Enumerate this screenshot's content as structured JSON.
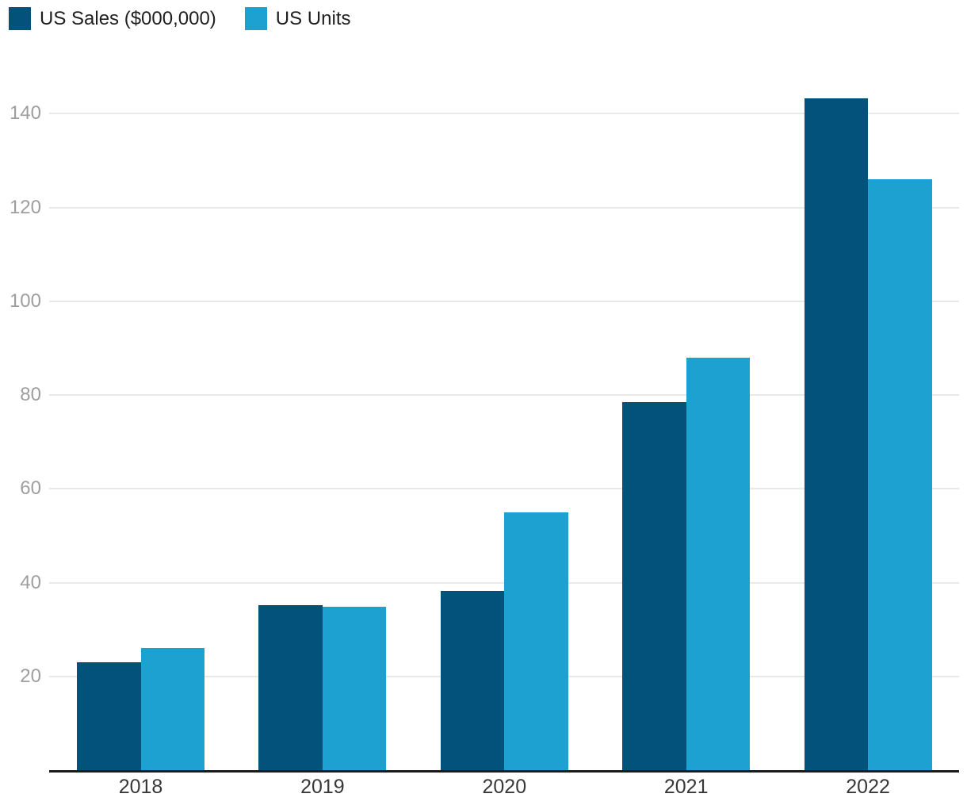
{
  "legend": {
    "items": [
      {
        "label": "US Sales ($000,000)"
      },
      {
        "label": "US Units"
      }
    ]
  },
  "chart_data": {
    "type": "bar",
    "title": "",
    "xlabel": "",
    "ylabel": "",
    "categories": [
      "2018",
      "2019",
      "2020",
      "2021",
      "2022"
    ],
    "series": [
      {
        "name": "US Sales ($000,000)",
        "color": "#02527C",
        "values": [
          23,
          35.1,
          38.3,
          78.5,
          143.3
        ]
      },
      {
        "name": "US Units",
        "color": "#1CA1D1",
        "values": [
          26,
          34.9,
          55,
          88,
          126
        ]
      }
    ],
    "yticks": [
      20,
      40,
      60,
      80,
      100,
      120,
      140
    ],
    "ylim": [
      0,
      149
    ],
    "grid": true,
    "legend_position": "top-left",
    "colors": {
      "grid_color": "#e9e9e9",
      "axis_line_color": "#1b1b1b",
      "ytick_label_color": "#9e9e9e",
      "xtick_label_color": "#383838",
      "legend_text_color": "#1f1f1f",
      "background": "#ffffff"
    }
  }
}
